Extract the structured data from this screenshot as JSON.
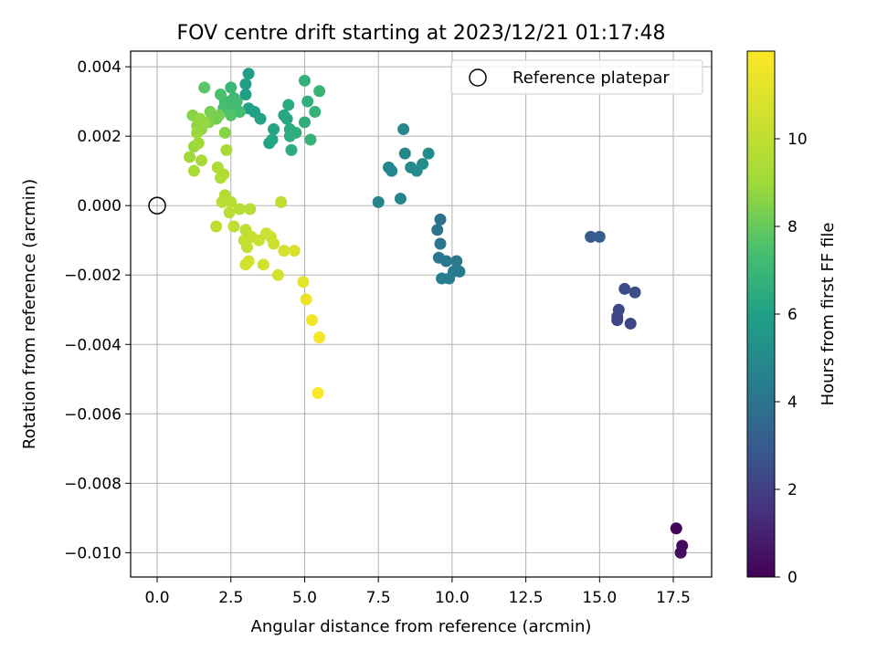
{
  "chart_data": {
    "type": "scatter",
    "title": "FOV centre drift starting at 2023/12/21 01:17:48",
    "xlabel": "Angular distance from reference (arcmin)",
    "ylabel": "Rotation from reference (arcmin)",
    "xlim": [
      -0.9,
      18.8
    ],
    "ylim": [
      -0.0107,
      0.00445
    ],
    "grid": true,
    "x_ticks": [
      0,
      2.5,
      5,
      7.5,
      10,
      12.5,
      15,
      17.5
    ],
    "x_tick_labels": [
      "0.0",
      "2.5",
      "5.0",
      "7.5",
      "10.0",
      "12.5",
      "15.0",
      "17.5"
    ],
    "y_ticks": [
      0.004,
      0.002,
      0,
      -0.002,
      -0.004,
      -0.006,
      -0.008,
      -0.01
    ],
    "y_tick_labels": [
      "0.004",
      "0.002",
      "0.000",
      "−0.002",
      "−0.004",
      "−0.006",
      "−0.008",
      "−0.010"
    ],
    "legend": {
      "label": "Reference platepar",
      "position": "top-right",
      "marker": "hollow circle"
    },
    "reference_point": {
      "x": 0,
      "y": 0
    },
    "colorbar": {
      "label": "Hours from first FF file",
      "range": [
        0,
        12
      ],
      "ticks": [
        0,
        2,
        4,
        6,
        8,
        10
      ],
      "tick_labels": [
        "0",
        "2",
        "4",
        "6",
        "8",
        "10"
      ],
      "colormap": "viridis"
    },
    "series": [
      {
        "values": [
          {
            "x": 17.6,
            "y": -0.0093,
            "h": 0.1
          },
          {
            "x": 17.8,
            "y": -0.0098,
            "h": 0.3
          },
          {
            "x": 17.75,
            "y": -0.01,
            "h": 0.4
          },
          {
            "x": 15.6,
            "y": -0.0033,
            "h": 2.1
          },
          {
            "x": 15.6,
            "y": -0.0032,
            "h": 2.2
          },
          {
            "x": 15.65,
            "y": -0.003,
            "h": 2.3
          },
          {
            "x": 16.05,
            "y": -0.0034,
            "h": 2.2
          },
          {
            "x": 15.85,
            "y": -0.0024,
            "h": 2.4
          },
          {
            "x": 16.2,
            "y": -0.0025,
            "h": 2.5
          },
          {
            "x": 14.7,
            "y": -0.0009,
            "h": 3.0
          },
          {
            "x": 15.0,
            "y": -0.0009,
            "h": 3.1
          },
          {
            "x": 9.6,
            "y": -0.0004,
            "h": 4.0
          },
          {
            "x": 9.5,
            "y": -0.0007,
            "h": 4.0
          },
          {
            "x": 9.6,
            "y": -0.0011,
            "h": 4.1
          },
          {
            "x": 9.55,
            "y": -0.0015,
            "h": 4.1
          },
          {
            "x": 9.8,
            "y": -0.0016,
            "h": 4.2
          },
          {
            "x": 10.15,
            "y": -0.0016,
            "h": 4.2
          },
          {
            "x": 10.05,
            "y": -0.0019,
            "h": 4.3
          },
          {
            "x": 10.25,
            "y": -0.0019,
            "h": 4.3
          },
          {
            "x": 9.65,
            "y": -0.0021,
            "h": 4.4
          },
          {
            "x": 9.9,
            "y": -0.0021,
            "h": 4.4
          },
          {
            "x": 7.5,
            "y": 0.0001,
            "h": 4.7
          },
          {
            "x": 8.25,
            "y": 0.0002,
            "h": 4.7
          },
          {
            "x": 7.85,
            "y": 0.0011,
            "h": 4.8
          },
          {
            "x": 7.95,
            "y": 0.001,
            "h": 4.8
          },
          {
            "x": 8.35,
            "y": 0.0022,
            "h": 4.9
          },
          {
            "x": 8.4,
            "y": 0.0015,
            "h": 4.9
          },
          {
            "x": 8.6,
            "y": 0.0011,
            "h": 5.0
          },
          {
            "x": 8.8,
            "y": 0.001,
            "h": 5.0
          },
          {
            "x": 9.0,
            "y": 0.0012,
            "h": 5.1
          },
          {
            "x": 9.2,
            "y": 0.0015,
            "h": 5.1
          },
          {
            "x": 3.1,
            "y": 0.0038,
            "h": 5.8
          },
          {
            "x": 3.0,
            "y": 0.0035,
            "h": 5.9
          },
          {
            "x": 3.0,
            "y": 0.0032,
            "h": 5.9
          },
          {
            "x": 3.1,
            "y": 0.0028,
            "h": 6.0
          },
          {
            "x": 3.3,
            "y": 0.0027,
            "h": 6.0
          },
          {
            "x": 3.5,
            "y": 0.0025,
            "h": 6.1
          },
          {
            "x": 3.8,
            "y": 0.0018,
            "h": 6.1
          },
          {
            "x": 3.9,
            "y": 0.0019,
            "h": 6.2
          },
          {
            "x": 3.95,
            "y": 0.0022,
            "h": 6.2
          },
          {
            "x": 4.3,
            "y": 0.0026,
            "h": 6.3
          },
          {
            "x": 4.4,
            "y": 0.0025,
            "h": 6.3
          },
          {
            "x": 4.45,
            "y": 0.0029,
            "h": 6.4
          },
          {
            "x": 4.5,
            "y": 0.0022,
            "h": 6.4
          },
          {
            "x": 4.5,
            "y": 0.002,
            "h": 6.5
          },
          {
            "x": 4.55,
            "y": 0.0016,
            "h": 6.5
          },
          {
            "x": 4.7,
            "y": 0.0021,
            "h": 6.6
          },
          {
            "x": 5.0,
            "y": 0.0024,
            "h": 6.6
          },
          {
            "x": 5.0,
            "y": 0.0036,
            "h": 6.7
          },
          {
            "x": 5.1,
            "y": 0.003,
            "h": 6.7
          },
          {
            "x": 5.2,
            "y": 0.0019,
            "h": 6.8
          },
          {
            "x": 5.35,
            "y": 0.0027,
            "h": 6.8
          },
          {
            "x": 5.5,
            "y": 0.0033,
            "h": 6.9
          },
          {
            "x": 2.5,
            "y": 0.0034,
            "h": 7.0
          },
          {
            "x": 2.6,
            "y": 0.0031,
            "h": 7.1
          },
          {
            "x": 2.3,
            "y": 0.003,
            "h": 7.2
          },
          {
            "x": 2.7,
            "y": 0.003,
            "h": 7.2
          },
          {
            "x": 2.6,
            "y": 0.0028,
            "h": 7.3
          },
          {
            "x": 2.8,
            "y": 0.0027,
            "h": 7.3
          },
          {
            "x": 2.25,
            "y": 0.0028,
            "h": 7.4
          },
          {
            "x": 2.15,
            "y": 0.0032,
            "h": 7.5
          },
          {
            "x": 1.6,
            "y": 0.0034,
            "h": 7.8
          },
          {
            "x": 2.5,
            "y": 0.0026,
            "h": 7.6
          },
          {
            "x": 2.0,
            "y": 0.0025,
            "h": 8.2
          },
          {
            "x": 1.8,
            "y": 0.0027,
            "h": 8.3
          },
          {
            "x": 2.1,
            "y": 0.0026,
            "h": 8.3
          },
          {
            "x": 1.75,
            "y": 0.0024,
            "h": 8.4
          },
          {
            "x": 1.2,
            "y": 0.0026,
            "h": 8.6
          },
          {
            "x": 1.35,
            "y": 0.0023,
            "h": 8.7
          },
          {
            "x": 1.5,
            "y": 0.0022,
            "h": 8.7
          },
          {
            "x": 1.6,
            "y": 0.0024,
            "h": 8.8
          },
          {
            "x": 2.3,
            "y": 0.0021,
            "h": 8.6
          },
          {
            "x": 1.25,
            "y": 0.0017,
            "h": 8.9
          },
          {
            "x": 1.4,
            "y": 0.0018,
            "h": 9.0
          },
          {
            "x": 1.45,
            "y": 0.0025,
            "h": 8.8
          },
          {
            "x": 1.35,
            "y": 0.0021,
            "h": 8.9
          },
          {
            "x": 1.1,
            "y": 0.0014,
            "h": 9.0
          },
          {
            "x": 1.5,
            "y": 0.0013,
            "h": 9.2
          },
          {
            "x": 1.25,
            "y": 0.001,
            "h": 9.3
          },
          {
            "x": 2.35,
            "y": 0.0016,
            "h": 9.3
          },
          {
            "x": 2.05,
            "y": 0.0011,
            "h": 9.4
          },
          {
            "x": 2.25,
            "y": 0.0009,
            "h": 9.5
          },
          {
            "x": 2.15,
            "y": 0.0008,
            "h": 9.5
          },
          {
            "x": 2.3,
            "y": 0.0003,
            "h": 9.6
          },
          {
            "x": 2.2,
            "y": 0.0001,
            "h": 9.7
          },
          {
            "x": 2.5,
            "y": 0.0001,
            "h": 9.7
          },
          {
            "x": 2.8,
            "y": -0.0001,
            "h": 9.8
          },
          {
            "x": 2.45,
            "y": -0.0002,
            "h": 9.8
          },
          {
            "x": 3.15,
            "y": -0.0001,
            "h": 9.8
          },
          {
            "x": 4.2,
            "y": 0.0001,
            "h": 10.0
          },
          {
            "x": 2.0,
            "y": -0.0006,
            "h": 9.9
          },
          {
            "x": 2.6,
            "y": -0.0006,
            "h": 10.0
          },
          {
            "x": 3.0,
            "y": -0.0007,
            "h": 10.0
          },
          {
            "x": 2.95,
            "y": -0.001,
            "h": 10.1
          },
          {
            "x": 3.05,
            "y": -0.0012,
            "h": 10.1
          },
          {
            "x": 3.2,
            "y": -0.0009,
            "h": 10.2
          },
          {
            "x": 3.45,
            "y": -0.001,
            "h": 10.3
          },
          {
            "x": 3.7,
            "y": -0.0008,
            "h": 10.4
          },
          {
            "x": 3.85,
            "y": -0.0009,
            "h": 10.4
          },
          {
            "x": 3.95,
            "y": -0.0011,
            "h": 10.5
          },
          {
            "x": 3.0,
            "y": -0.0017,
            "h": 10.5
          },
          {
            "x": 3.1,
            "y": -0.0016,
            "h": 10.6
          },
          {
            "x": 3.6,
            "y": -0.0017,
            "h": 10.6
          },
          {
            "x": 4.1,
            "y": -0.002,
            "h": 10.7
          },
          {
            "x": 4.3,
            "y": -0.0013,
            "h": 10.7
          },
          {
            "x": 4.65,
            "y": -0.0013,
            "h": 10.8
          },
          {
            "x": 4.95,
            "y": -0.0022,
            "h": 11.2
          },
          {
            "x": 5.05,
            "y": -0.0027,
            "h": 11.4
          },
          {
            "x": 5.25,
            "y": -0.0033,
            "h": 11.6
          },
          {
            "x": 5.5,
            "y": -0.0038,
            "h": 11.8
          },
          {
            "x": 5.45,
            "y": -0.0054,
            "h": 11.9
          }
        ]
      }
    ]
  }
}
